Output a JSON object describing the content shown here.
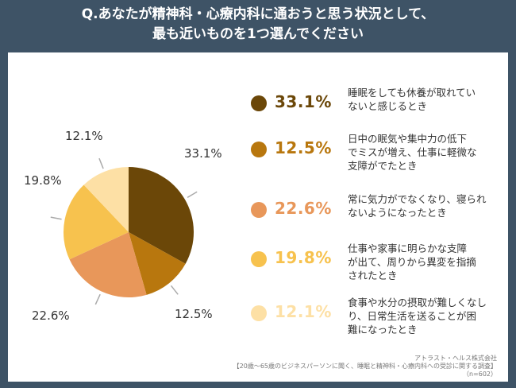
{
  "header": {
    "title_line1": "Q.あなたが精神科・心療内科に通おうと思う状況として、",
    "title_line2": "最も近いものを1つ選んでください"
  },
  "chart_data": {
    "type": "pie",
    "series": [
      {
        "label": "33.1%",
        "value": 33.1,
        "color": "#6b4708",
        "text": "睡眠をしても休養が取れていないと感じるとき"
      },
      {
        "label": "12.5%",
        "value": 12.5,
        "color": "#b8770e",
        "text": "日中の眠気や集中力の低下でミスが増え、仕事に軽微な支障がでたとき"
      },
      {
        "label": "22.6%",
        "value": 22.6,
        "color": "#e8975a",
        "text": "常に気力がでなくなり、寝られないようになったとき"
      },
      {
        "label": "19.8%",
        "value": 19.8,
        "color": "#f7c24e",
        "text": "仕事や家事に明らかな支障が出て、周りから異変を指摘されたとき"
      },
      {
        "label": "12.1%",
        "value": 12.1,
        "color": "#fde0a5",
        "text": "食事や水分の摂取が難しくなり、日常生活を送ることが困難になったとき"
      }
    ]
  },
  "legend": {
    "items": [
      {
        "value": "33.1%",
        "text": "睡眠をしても休養が取れてい\nないと感じるとき"
      },
      {
        "value": "12.5%",
        "text": "日中の眠気や集中力の低下\nでミスが増え、仕事に軽微な\n支障がでたとき"
      },
      {
        "value": "22.6%",
        "text": "常に気力がでなくなり、寝られ\nないようになったとき"
      },
      {
        "value": "19.8%",
        "text": "仕事や家事に明らかな支障\nが出て、周りから異変を指摘\nされたとき"
      },
      {
        "value": "12.1%",
        "text": "食事や水分の摂取が難しくなし\nり、日常生活を送ることが困\n難になったとき"
      }
    ]
  },
  "source": {
    "line1": "アトラスト・ヘルス株式会社",
    "line2": "【20歳～65歳のビジネスパーソンに聞く、睡眠と精神科・心療内科への受診に関する調査】",
    "line3": "（n=602）"
  }
}
